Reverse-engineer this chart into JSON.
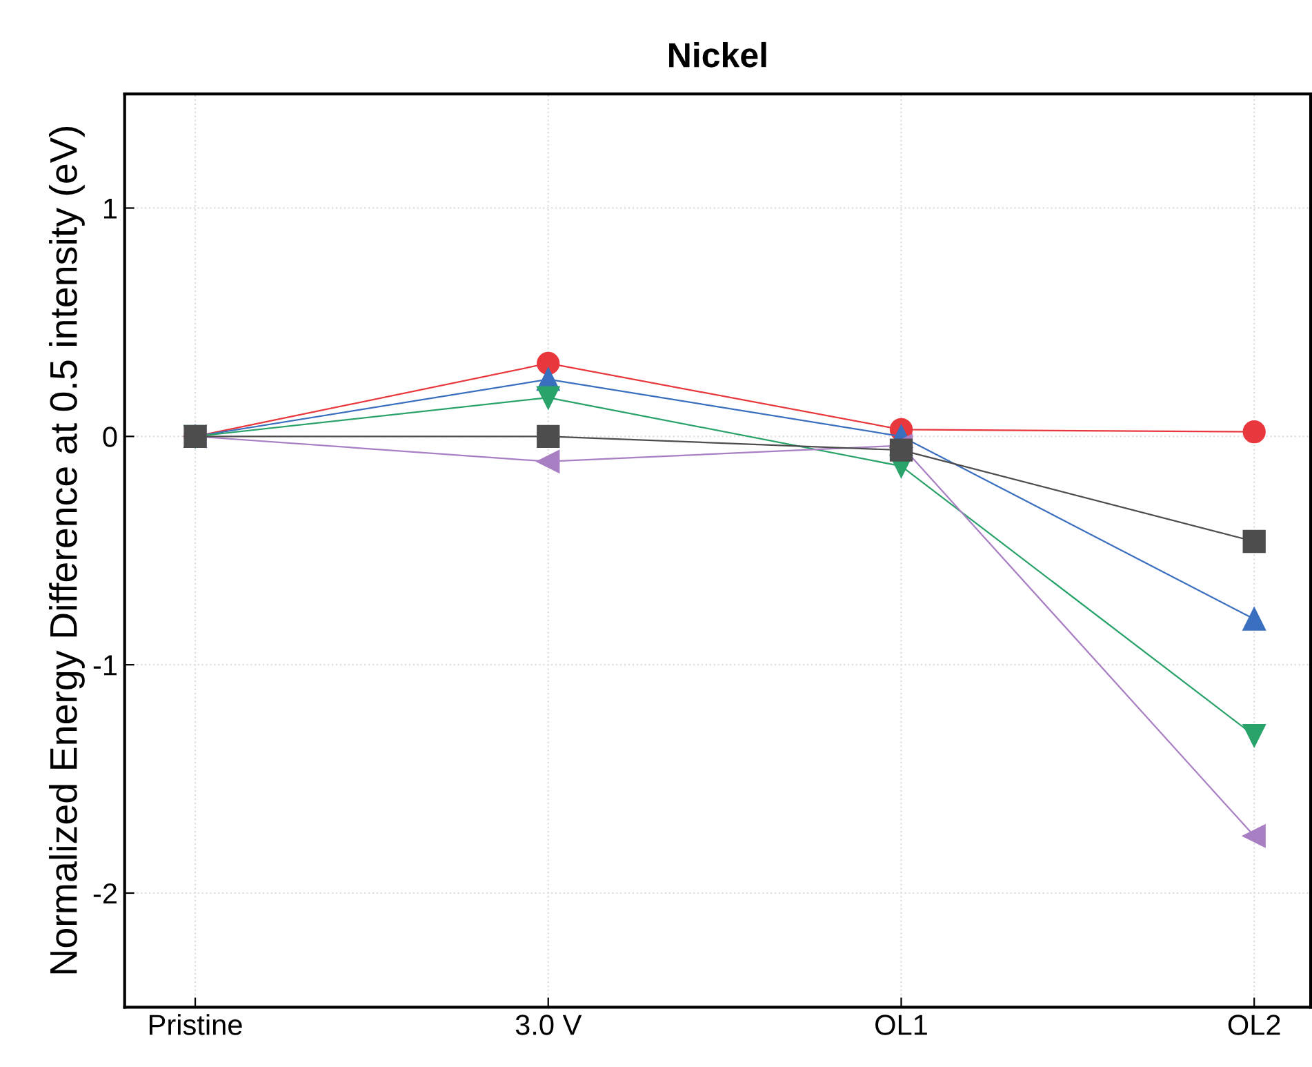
{
  "chart_data": {
    "type": "line",
    "title": "Nickel",
    "ylabel": "Normalized Energy Difference at 0.5 intensity (eV)",
    "categories": [
      "Pristine",
      "3.0 V",
      "OL1",
      "OL2"
    ],
    "series": [
      {
        "color": "#e8383d",
        "marker": "circle",
        "values": [
          0,
          0.32,
          0.03,
          0.02
        ]
      },
      {
        "color": "#3a6fbf",
        "marker": "triangle",
        "values": [
          0,
          0.25,
          0.0,
          -0.8
        ]
      },
      {
        "color": "#2aa36b",
        "marker": "triangle_down",
        "values": [
          0,
          0.17,
          -0.13,
          -1.31
        ]
      },
      {
        "color": "#a97fc4",
        "marker": "triangle_left",
        "values": [
          0,
          -0.11,
          -0.04,
          -1.75
        ]
      },
      {
        "color": "#4d4d4d",
        "marker": "square",
        "values": [
          0,
          0,
          -0.06,
          -0.46
        ]
      }
    ],
    "ylim": [
      -2.5,
      1.5
    ],
    "yticks": [
      -2,
      -1,
      0,
      1
    ],
    "grid": true,
    "legend": false
  }
}
